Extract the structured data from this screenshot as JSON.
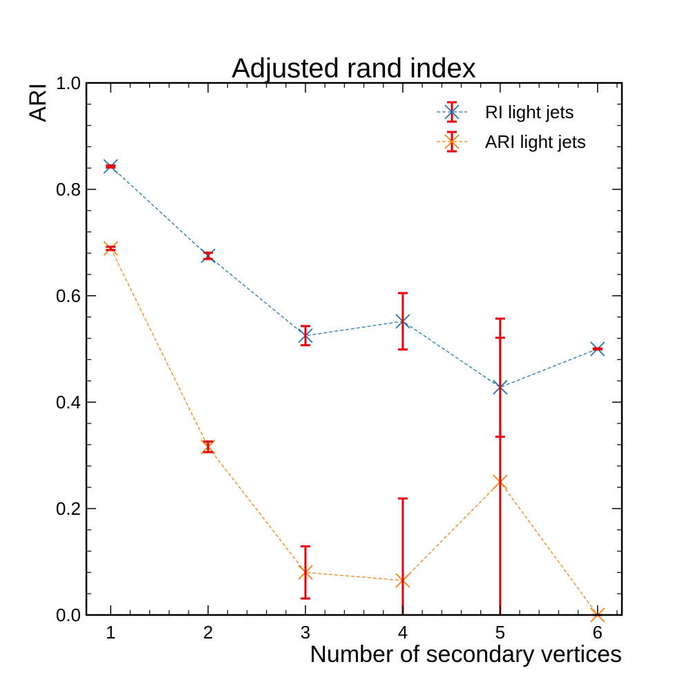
{
  "chart_data": {
    "type": "line",
    "title": "Adjusted rand index",
    "xlabel": "Number of secondary vertices",
    "ylabel": "ARI",
    "xlim": [
      0.75,
      6.25
    ],
    "ylim": [
      0.0,
      1.0
    ],
    "xticks": [
      1,
      2,
      3,
      4,
      5,
      6
    ],
    "yticks": [
      0.0,
      0.2,
      0.4,
      0.6,
      0.8,
      1.0
    ],
    "ytick_labels": [
      "0.0",
      "0.2",
      "0.4",
      "0.6",
      "0.8",
      "1.0"
    ],
    "grid": false,
    "legend_position": "top-right",
    "error_bar_color": "#e8000b",
    "series": [
      {
        "name": "RI light jets",
        "color": "#1f77b4",
        "marker": "x",
        "linestyle": "dashed",
        "x": [
          1,
          2,
          3,
          4,
          5,
          6
        ],
        "y": [
          0.843,
          0.675,
          0.525,
          0.552,
          0.428,
          0.5
        ],
        "yerr": [
          0.002,
          0.006,
          0.018,
          0.053,
          0.093,
          0.001
        ]
      },
      {
        "name": "ARI light jets",
        "color": "#ff7f0e",
        "marker": "x",
        "linestyle": "dashed",
        "x": [
          1,
          2,
          3,
          4,
          5,
          6
        ],
        "y": [
          0.689,
          0.316,
          0.08,
          0.065,
          0.25,
          0.0
        ],
        "yerr": [
          0.003,
          0.01,
          0.049,
          0.154,
          0.307,
          0.0
        ]
      }
    ]
  }
}
